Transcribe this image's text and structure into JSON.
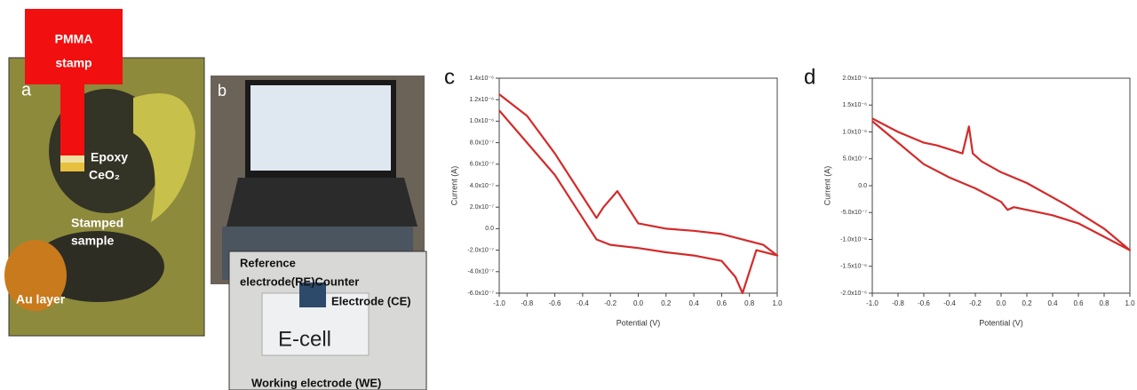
{
  "panels": {
    "a": {
      "label": "a",
      "stamp": [
        "PMMA",
        "stamp"
      ],
      "epoxy": "Epoxy",
      "ceo2": "CeO₂",
      "sample": [
        "Stamped",
        "sample"
      ],
      "au": "Au layer"
    },
    "b": {
      "label": "b",
      "reference": [
        "Reference",
        "electrode(RE)Counter"
      ],
      "counter": "Electrode (CE)",
      "cell": "E-cell",
      "working": "Working electrode (WE)"
    }
  },
  "chart_data": [
    {
      "type": "line",
      "title": "c",
      "xlabel": "Potential (V)",
      "ylabel": "Current (A)",
      "x": [
        -1,
        -0.8,
        -0.6,
        -0.4,
        -0.3,
        -0.2,
        0,
        0.2,
        0.4,
        0.6,
        0.7,
        0.75,
        0.85,
        1.0,
        0.9,
        0.6,
        0.4,
        0.2,
        0,
        -0.1,
        -0.15,
        -0.25,
        -0.3,
        -0.4,
        -0.6,
        -0.8,
        -1.0
      ],
      "series": [
        {
          "color": "#d42a2a",
          "values": [
            1.1e-06,
            8e-07,
            5e-07,
            1e-07,
            -1e-07,
            -1.5e-07,
            -1.8e-07,
            -2.2e-07,
            -2.5e-07,
            -3e-07,
            -4.5e-07,
            -6e-07,
            -2e-07,
            -2.5e-07,
            -1.5e-07,
            -5e-08,
            -2e-08,
            0,
            5e-08,
            2.5e-07,
            3.5e-07,
            2e-07,
            1e-07,
            3e-07,
            7e-07,
            1.05e-06,
            1.25e-06
          ]
        }
      ],
      "xlim": [
        -1,
        1
      ],
      "xticks": [
        {
          "value": -1,
          "label": "-1.0"
        },
        {
          "value": -0.8,
          "label": "-0.8"
        },
        {
          "value": -0.6,
          "label": "-0.6"
        },
        {
          "value": -0.4,
          "label": "-0.4"
        },
        {
          "value": -0.2,
          "label": "-0.2"
        },
        {
          "value": 0,
          "label": "0.0"
        },
        {
          "value": 0.2,
          "label": "0.2"
        },
        {
          "value": 0.4,
          "label": "0.4"
        },
        {
          "value": 0.6,
          "label": "0.6"
        },
        {
          "value": 0.8,
          "label": "0.8"
        },
        {
          "value": 1,
          "label": "1.0"
        }
      ],
      "ylim": [
        -6e-07,
        1.4e-06
      ],
      "yticks": [
        {
          "value": -6e-07,
          "label": "-6.0x10⁻⁷"
        },
        {
          "value": -4e-07,
          "label": "-4.0x10⁻⁷"
        },
        {
          "value": -2e-07,
          "label": "-2.0x10⁻⁷"
        },
        {
          "value": 0,
          "label": "0.0"
        },
        {
          "value": 2e-07,
          "label": "2.0x10⁻⁷"
        },
        {
          "value": 4e-07,
          "label": "4.0x10⁻⁷"
        },
        {
          "value": 6e-07,
          "label": "6.0x10⁻⁷"
        },
        {
          "value": 8e-07,
          "label": "8.0x10⁻⁷"
        },
        {
          "value": 1e-06,
          "label": "1.0x10⁻⁶"
        },
        {
          "value": 1.2e-06,
          "label": "1.2x10⁻⁶"
        },
        {
          "value": 1.4e-06,
          "label": "1.4x10⁻⁶"
        }
      ]
    },
    {
      "type": "line",
      "title": "d",
      "xlabel": "Potential (V)",
      "ylabel": "Current (A)",
      "x": [
        -1,
        -0.8,
        -0.6,
        -0.4,
        -0.2,
        0,
        0.05,
        0.1,
        0.4,
        0.6,
        0.8,
        1.0,
        0.8,
        0.5,
        0.2,
        0,
        -0.15,
        -0.22,
        -0.25,
        -0.3,
        -0.5,
        -0.6,
        -0.8,
        -1.0
      ],
      "series": [
        {
          "color": "#d42a2a",
          "values": [
            1.2e-06,
            8e-07,
            4e-07,
            1.5e-07,
            -5e-08,
            -3e-07,
            -4.5e-07,
            -4e-07,
            -5.5e-07,
            -7e-07,
            -9.5e-07,
            -1.2e-06,
            -8e-07,
            -3.5e-07,
            5e-08,
            2.5e-07,
            4.5e-07,
            6e-07,
            1.1e-06,
            6e-07,
            7.5e-07,
            8e-07,
            1e-06,
            1.25e-06
          ]
        }
      ],
      "xlim": [
        -1,
        1
      ],
      "xticks": [
        {
          "value": -1,
          "label": "-1.0"
        },
        {
          "value": -0.8,
          "label": "-0.8"
        },
        {
          "value": -0.6,
          "label": "-0.6"
        },
        {
          "value": -0.4,
          "label": "-0.4"
        },
        {
          "value": -0.2,
          "label": "-0.2"
        },
        {
          "value": 0,
          "label": "0.0"
        },
        {
          "value": 0.2,
          "label": "0.2"
        },
        {
          "value": 0.4,
          "label": "0.4"
        },
        {
          "value": 0.6,
          "label": "0.6"
        },
        {
          "value": 0.8,
          "label": "0.8"
        },
        {
          "value": 1,
          "label": "1.0"
        }
      ],
      "ylim": [
        -2e-06,
        2e-06
      ],
      "yticks": [
        {
          "value": -2e-06,
          "label": "-2.0x10⁻⁶"
        },
        {
          "value": -1.5e-06,
          "label": "-1.5x10⁻⁶"
        },
        {
          "value": -1e-06,
          "label": "-1.0x10⁻⁶"
        },
        {
          "value": -5e-07,
          "label": "-5.0x10⁻⁷"
        },
        {
          "value": 0,
          "label": "0.0"
        },
        {
          "value": 5e-07,
          "label": "5.0x10⁻⁷"
        },
        {
          "value": 1e-06,
          "label": "1.0x10⁻⁶"
        },
        {
          "value": 1.5e-06,
          "label": "1.5x10⁻⁶"
        },
        {
          "value": 2e-06,
          "label": "2.0x10⁻⁶"
        }
      ]
    }
  ]
}
